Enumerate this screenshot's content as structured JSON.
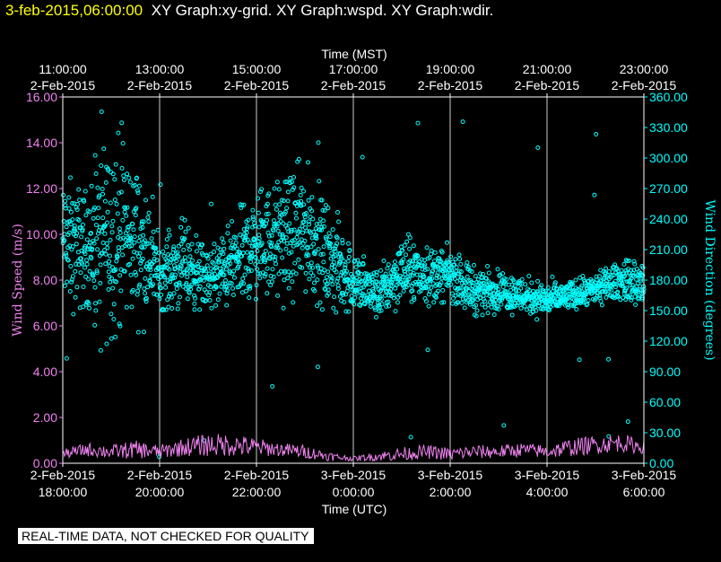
{
  "header": {
    "timestamp": "3-feb-2015,06:00:00",
    "graphs": "XY Graph:xy-grid.  XY Graph:wspd.  XY Graph:wdir."
  },
  "colors": {
    "background": "#000000",
    "frame": "#ffffff",
    "grid": "#ffffff",
    "wspd": "#ee82ee",
    "wdir": "#00ffff",
    "timestamp": "#ffff00"
  },
  "notice": "REAL-TIME DATA, NOT CHECKED FOR QUALITY",
  "chart_data": {
    "type": "line",
    "x_range_hours_utc": [
      18,
      30
    ],
    "top_axis": {
      "title": "Time (MST)",
      "ticks": [
        {
          "time": "11:00:00",
          "date": "2-Feb-2015",
          "x": 18
        },
        {
          "time": "13:00:00",
          "date": "2-Feb-2015",
          "x": 20
        },
        {
          "time": "15:00:00",
          "date": "2-Feb-2015",
          "x": 22
        },
        {
          "time": "17:00:00",
          "date": "2-Feb-2015",
          "x": 24
        },
        {
          "time": "19:00:00",
          "date": "2-Feb-2015",
          "x": 26
        },
        {
          "time": "21:00:00",
          "date": "2-Feb-2015",
          "x": 28
        },
        {
          "time": "23:00:00",
          "date": "2-Feb-2015",
          "x": 30
        }
      ]
    },
    "bottom_axis": {
      "title": "Time (UTC)",
      "ticks": [
        {
          "date": "2-Feb-2015",
          "time": "18:00:00",
          "x": 18
        },
        {
          "date": "2-Feb-2015",
          "time": "20:00:00",
          "x": 20
        },
        {
          "date": "2-Feb-2015",
          "time": "22:00:00",
          "x": 22
        },
        {
          "date": "3-Feb-2015",
          "time": "0:00:00",
          "x": 24
        },
        {
          "date": "3-Feb-2015",
          "time": "2:00:00",
          "x": 26
        },
        {
          "date": "3-Feb-2015",
          "time": "4:00:00",
          "x": 28
        },
        {
          "date": "3-Feb-2015",
          "time": "6:00:00",
          "x": 30
        }
      ]
    },
    "left_axis": {
      "title": "Wind Speed (m/s)",
      "range": [
        0,
        16
      ],
      "ticks": [
        0,
        2,
        4,
        6,
        8,
        10,
        12,
        14,
        16
      ],
      "labels": [
        "0.00",
        "2.00",
        "4.00",
        "6.00",
        "8.00",
        "10.00",
        "12.00",
        "14.00",
        "16.00"
      ]
    },
    "right_axis": {
      "title": "Wind Direction (degrees)",
      "range": [
        0,
        360
      ],
      "ticks": [
        0,
        30,
        60,
        90,
        120,
        150,
        180,
        210,
        240,
        270,
        300,
        330,
        360
      ],
      "labels": [
        "0.00",
        "30.00",
        "60.00",
        "90.00",
        "120.00",
        "150.00",
        "180.00",
        "210.00",
        "240.00",
        "270.00",
        "300.00",
        "330.00",
        "360.00"
      ]
    },
    "grid": "vertical",
    "series": [
      {
        "id": "wspd",
        "axis": "left",
        "style": "line",
        "x": [
          18.0,
          18.5,
          19.0,
          19.5,
          20.0,
          20.5,
          21.0,
          21.5,
          22.0,
          22.5,
          23.0,
          23.5,
          24.0,
          24.5,
          25.0,
          25.5,
          26.0,
          26.5,
          27.0,
          27.5,
          28.0,
          28.5,
          29.0,
          29.5,
          30.0
        ],
        "y": [
          0.4,
          0.6,
          0.5,
          0.6,
          0.5,
          0.7,
          0.8,
          0.8,
          0.7,
          0.6,
          0.5,
          0.3,
          0.2,
          0.3,
          0.4,
          0.5,
          0.4,
          0.5,
          0.5,
          0.6,
          0.5,
          0.7,
          0.8,
          0.9,
          0.7
        ],
        "spread": [
          0.2,
          0.3,
          0.3,
          0.4,
          0.3,
          0.4,
          0.5,
          0.5,
          0.4,
          0.3,
          0.3,
          0.2,
          0.1,
          0.2,
          0.3,
          0.3,
          0.3,
          0.3,
          0.3,
          0.3,
          0.3,
          0.4,
          0.4,
          0.4,
          0.3
        ]
      },
      {
        "id": "wdir",
        "axis": "right",
        "style": "scatter",
        "x": [
          18.0,
          18.5,
          19.0,
          19.5,
          20.0,
          20.5,
          21.0,
          21.5,
          22.0,
          22.5,
          23.0,
          23.5,
          24.0,
          24.5,
          25.0,
          25.5,
          26.0,
          26.5,
          27.0,
          27.5,
          28.0,
          28.5,
          29.0,
          29.5,
          30.0
        ],
        "y": [
          215,
          210,
          230,
          220,
          185,
          195,
          180,
          195,
          215,
          220,
          230,
          200,
          180,
          165,
          190,
          185,
          185,
          170,
          170,
          165,
          160,
          165,
          170,
          180,
          175
        ],
        "spread": [
          70,
          60,
          110,
          80,
          35,
          45,
          30,
          45,
          55,
          60,
          65,
          55,
          35,
          25,
          35,
          30,
          25,
          25,
          20,
          20,
          18,
          15,
          15,
          20,
          25
        ]
      }
    ]
  }
}
